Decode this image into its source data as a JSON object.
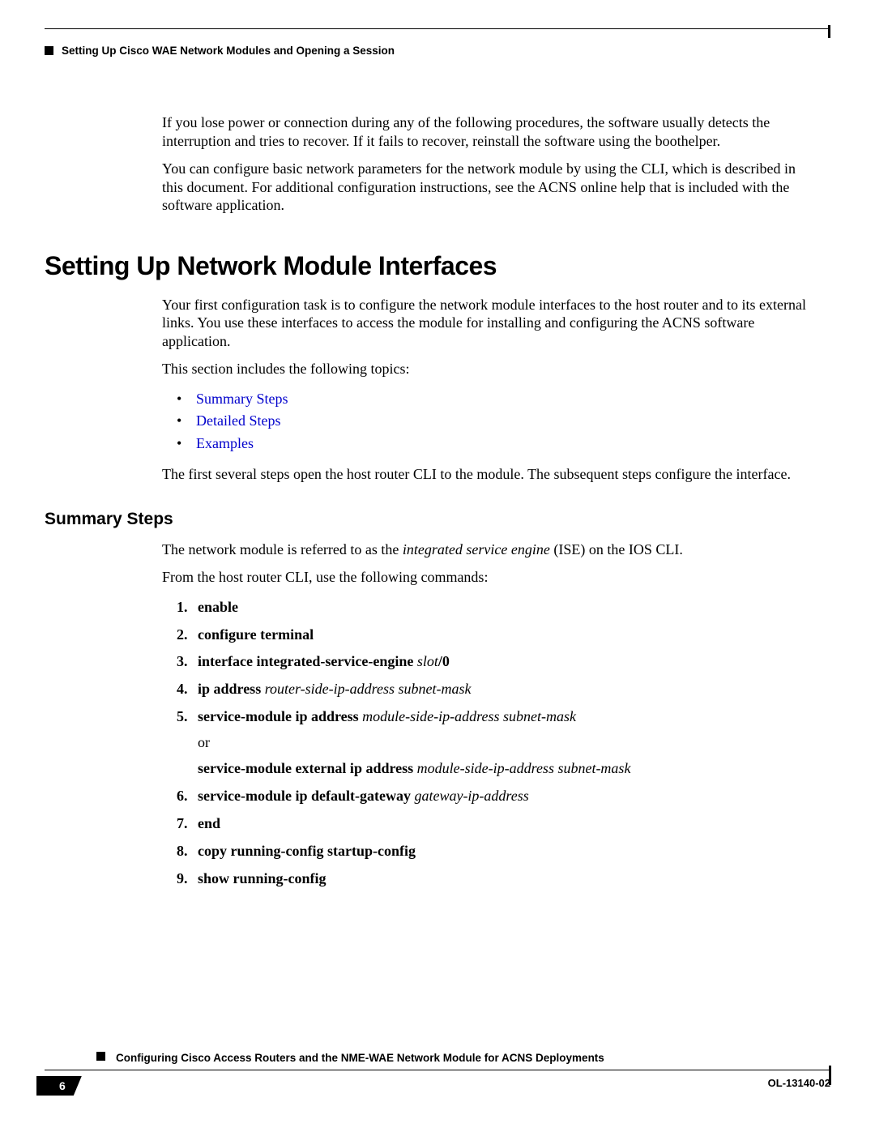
{
  "colors": {
    "link": "#0000cc",
    "text": "#000000",
    "background": "#ffffff"
  },
  "header": {
    "running_title": "Setting Up Cisco WAE Network Modules and Opening a Session"
  },
  "intro": {
    "para1": "If you lose power or connection during any of the following procedures, the software usually detects the interruption and tries to recover. If it fails to recover, reinstall the software using the boothelper.",
    "para2": "You can configure basic network parameters for the network module by using the CLI, which is described in this document. For additional configuration instructions, see the ACNS online help that is included with the software application."
  },
  "section": {
    "title": "Setting Up Network Module Interfaces",
    "para1": "Your first configuration task is to configure the network module interfaces to the host router and to its external links. You use these interfaces to access the module for installing and configuring the ACNS software application.",
    "para2": "This section includes the following topics:",
    "topics": [
      "Summary Steps",
      "Detailed Steps",
      "Examples"
    ],
    "para3": "The first several steps open the host router CLI to the module. The subsequent steps configure the interface."
  },
  "summary": {
    "title": "Summary Steps",
    "intro_pre": "The network module is referred to as the ",
    "intro_em": "integrated service engine",
    "intro_post": " (ISE) on the IOS CLI.",
    "intro2": "From the host router CLI, use the following commands:",
    "steps": {
      "s1": "enable",
      "s2": "configure terminal",
      "s3_cmd": "interface integrated-service-engine ",
      "s3_arg": "slot",
      "s3_post": "/0",
      "s4_cmd": "ip address ",
      "s4_arg": "router-side-ip-address subnet-mask",
      "s5_cmd": "service-module ip address ",
      "s5_arg": "module-side-ip-address subnet-mask",
      "s5_or": "or",
      "s5b_cmd": "service-module external ip address ",
      "s5b_arg": "module-side-ip-address subnet-mask",
      "s6_cmd": "service-module ip default-gateway ",
      "s6_arg": "gateway-ip-address",
      "s7": "end",
      "s8": "copy running-config startup-config",
      "s9": "show running-config"
    }
  },
  "footer": {
    "page_number": "6",
    "doc_title": "Configuring Cisco Access Routers and the NME-WAE Network Module for ACNS Deployments",
    "doc_code": "OL-13140-02"
  }
}
